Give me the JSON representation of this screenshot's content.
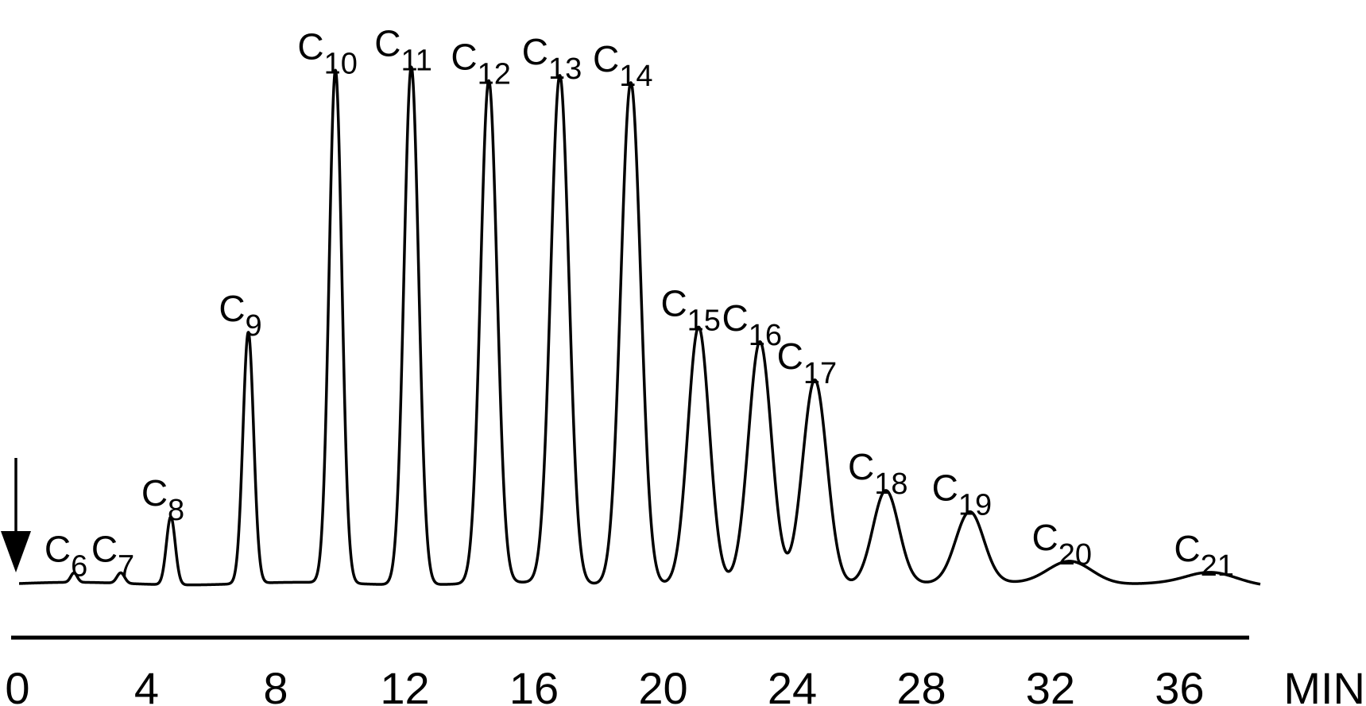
{
  "chart_data": {
    "type": "line",
    "title": "",
    "xlabel": "",
    "x_unit_label": "MIN",
    "ylabel": "",
    "xlim": [
      0,
      38.5
    ],
    "ylim": [
      0,
      100
    ],
    "x_ticks": [
      "0",
      "4",
      "8",
      "12",
      "16",
      "20",
      "24",
      "28",
      "32",
      "36"
    ],
    "grid": false,
    "legend": "none",
    "injection_marker": {
      "x": 0
    },
    "colors": {
      "line": "#000000",
      "text": "#000000",
      "background": "#ffffff"
    },
    "peaks": [
      {
        "label": "C",
        "subscript": "6",
        "x": 1.75,
        "height": 1.8
      },
      {
        "label": "C",
        "subscript": "7",
        "x": 3.2,
        "height": 2.0
      },
      {
        "label": "C",
        "subscript": "8",
        "x": 4.75,
        "height": 13.0
      },
      {
        "label": "C",
        "subscript": "9",
        "x": 7.15,
        "height": 48.0
      },
      {
        "label": "C",
        "subscript": "10",
        "x": 9.85,
        "height": 98.0
      },
      {
        "label": "C",
        "subscript": "11",
        "x": 12.2,
        "height": 99.0
      },
      {
        "label": "C",
        "subscript": "12",
        "x": 14.6,
        "height": 96.0
      },
      {
        "label": "C",
        "subscript": "13",
        "x": 16.8,
        "height": 97.0
      },
      {
        "label": "C",
        "subscript": "14",
        "x": 19.0,
        "height": 96.0
      },
      {
        "label": "C",
        "subscript": "15",
        "x": 21.1,
        "height": 49.0
      },
      {
        "label": "C",
        "subscript": "16",
        "x": 23.0,
        "height": 46.0
      },
      {
        "label": "C",
        "subscript": "17",
        "x": 24.7,
        "height": 39.0
      },
      {
        "label": "C",
        "subscript": "18",
        "x": 26.9,
        "height": 18.0
      },
      {
        "label": "C",
        "subscript": "19",
        "x": 29.5,
        "height": 13.5
      },
      {
        "label": "C",
        "subscript": "20",
        "x": 32.6,
        "height": 4.5
      },
      {
        "label": "C",
        "subscript": "21",
        "x": 37.0,
        "height": 2.0
      }
    ]
  }
}
